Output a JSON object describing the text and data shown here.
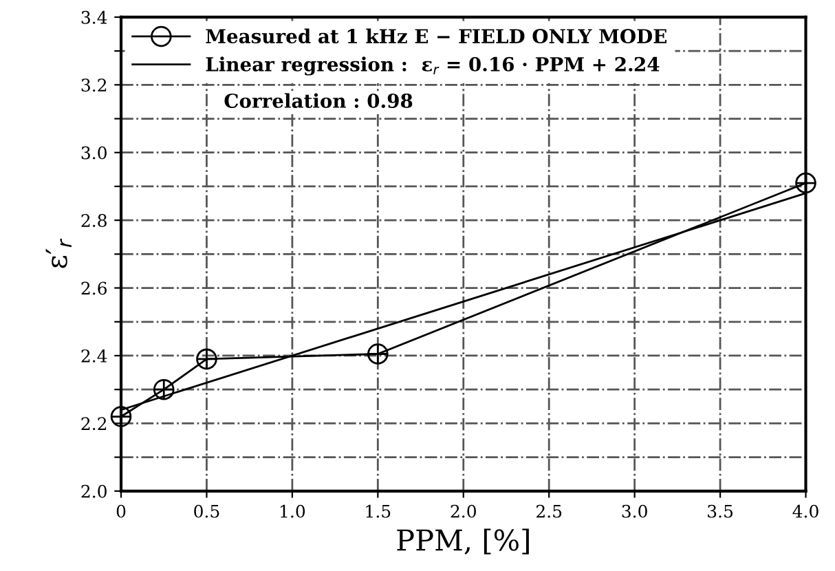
{
  "chart_data": {
    "type": "line",
    "xlabel": "PPM, [%]",
    "ylabel": "ε′$_{r}$",
    "x": [
      0,
      0.25,
      0.5,
      1.5,
      4.0
    ],
    "series": [
      {
        "name": "Measured at 1 kHz E − FIELD ONLY MODE",
        "color": "#000000",
        "values": [
          2.22,
          2.3,
          2.39,
          2.405,
          2.91
        ],
        "marker": "circle"
      },
      {
        "name": "Linear regression :  ε$_{r}$ = 0.16 · PPM + 2.24",
        "color": "#000000",
        "x": [
          0,
          4.0
        ],
        "values": [
          2.24,
          2.88
        ],
        "marker": "none"
      }
    ],
    "xlim": [
      0,
      4.0
    ],
    "ylim": [
      2.0,
      3.4
    ],
    "xticks": [
      0,
      0.5,
      {
        "value": 1,
        "label": "1.0"
      },
      1.5,
      {
        "value": 2,
        "label": "2.0"
      },
      2.5,
      {
        "value": 3,
        "label": "3.0"
      },
      3.5,
      {
        "value": 4,
        "label": "4.0"
      }
    ],
    "yticks": [
      {
        "value": 2,
        "label": "2.0"
      },
      {
        "value": 2.1,
        "label": null
      },
      2.2,
      {
        "value": 2.3,
        "label": null
      },
      2.4,
      {
        "value": 2.5,
        "label": null
      },
      2.6,
      {
        "value": 2.7,
        "label": null
      },
      2.8,
      {
        "value": 2.9,
        "label": null
      },
      {
        "value": 3,
        "label": "3.0"
      },
      {
        "value": 3.1,
        "label": null
      },
      3.2,
      {
        "value": 3.3,
        "label": null
      },
      3.4
    ],
    "annotations": [
      "Correlation : 0.98"
    ],
    "grid": true,
    "legend": "top left",
    "line_style": "solid"
  }
}
